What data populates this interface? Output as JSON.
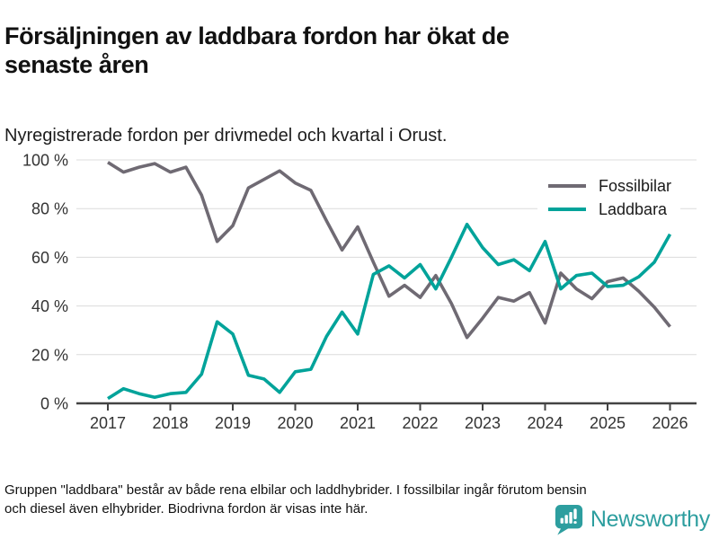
{
  "title": "Försäljningen av laddbara fordon har ökat de\nsenaste åren",
  "subtitle": "Nyregistrerade fordon per drivmedel och kvartal i Orust.",
  "footnote": "Gruppen \"laddbara\" består av både rena elbilar och laddhybrider. I fossilbilar ingår förutom bensin\noch diesel även elhybrider. Biodrivna fordon är visas inte här.",
  "brand": {
    "name": "Newsworthy",
    "icon": "bar-chart-speech-bubble-icon",
    "color": "#2d9e9f"
  },
  "colors": {
    "fossil": "#6f6a73",
    "laddbara": "#00a39a",
    "grid": "#dcdcdc",
    "axis": "#434343",
    "tick_text": "#333333"
  },
  "chart_data": {
    "type": "line",
    "title": "Försäljningen av laddbara fordon har ökat de senaste åren",
    "subtitle": "Nyregistrerade fordon per drivmedel och kvartal i Orust.",
    "x_unit": "quarter",
    "x_start": 2017.0,
    "x_step": 0.25,
    "ylim": [
      0,
      100
    ],
    "grid": "horizontal",
    "legend_position": "top-right",
    "y_ticks": [
      {
        "value": 0,
        "label": "0 %"
      },
      {
        "value": 20,
        "label": "20 %"
      },
      {
        "value": 40,
        "label": "40 %"
      },
      {
        "value": 60,
        "label": "60 %"
      },
      {
        "value": 80,
        "label": "80 %"
      },
      {
        "value": 100,
        "label": "100 %"
      }
    ],
    "x_ticks": [
      {
        "value": 2017,
        "label": "2017"
      },
      {
        "value": 2018,
        "label": "2018"
      },
      {
        "value": 2019,
        "label": "2019"
      },
      {
        "value": 2020,
        "label": "2020"
      },
      {
        "value": 2021,
        "label": "2021"
      },
      {
        "value": 2022,
        "label": "2022"
      },
      {
        "value": 2023,
        "label": "2023"
      },
      {
        "value": 2024,
        "label": "2024"
      },
      {
        "value": 2025,
        "label": "2025"
      },
      {
        "value": 2026,
        "label": "2026"
      }
    ],
    "series": [
      {
        "name": "Fossilbilar",
        "color": "#6f6a73",
        "values": [
          99,
          95,
          97,
          98.5,
          95,
          97,
          85.5,
          66.5,
          73,
          88.5,
          92,
          95.5,
          90.5,
          87.5,
          75,
          63,
          72.5,
          58,
          44,
          48.5,
          43.5,
          52.5,
          41,
          27,
          35,
          43.5,
          42,
          45.5,
          33,
          53.5,
          47,
          43,
          50,
          51.5,
          46,
          39.5,
          31.5
        ]
      },
      {
        "name": "Laddbara",
        "color": "#00a39a",
        "values": [
          2,
          6,
          4,
          2.5,
          4,
          4.5,
          12,
          33.5,
          28.5,
          11.5,
          10,
          4.5,
          13,
          14,
          27.5,
          37.5,
          28.5,
          53,
          56.5,
          51.5,
          57,
          47,
          60,
          73.5,
          64,
          57,
          59,
          54.5,
          66.5,
          47,
          52.5,
          53.5,
          48,
          48.5,
          52,
          58,
          69.5
        ]
      }
    ]
  }
}
